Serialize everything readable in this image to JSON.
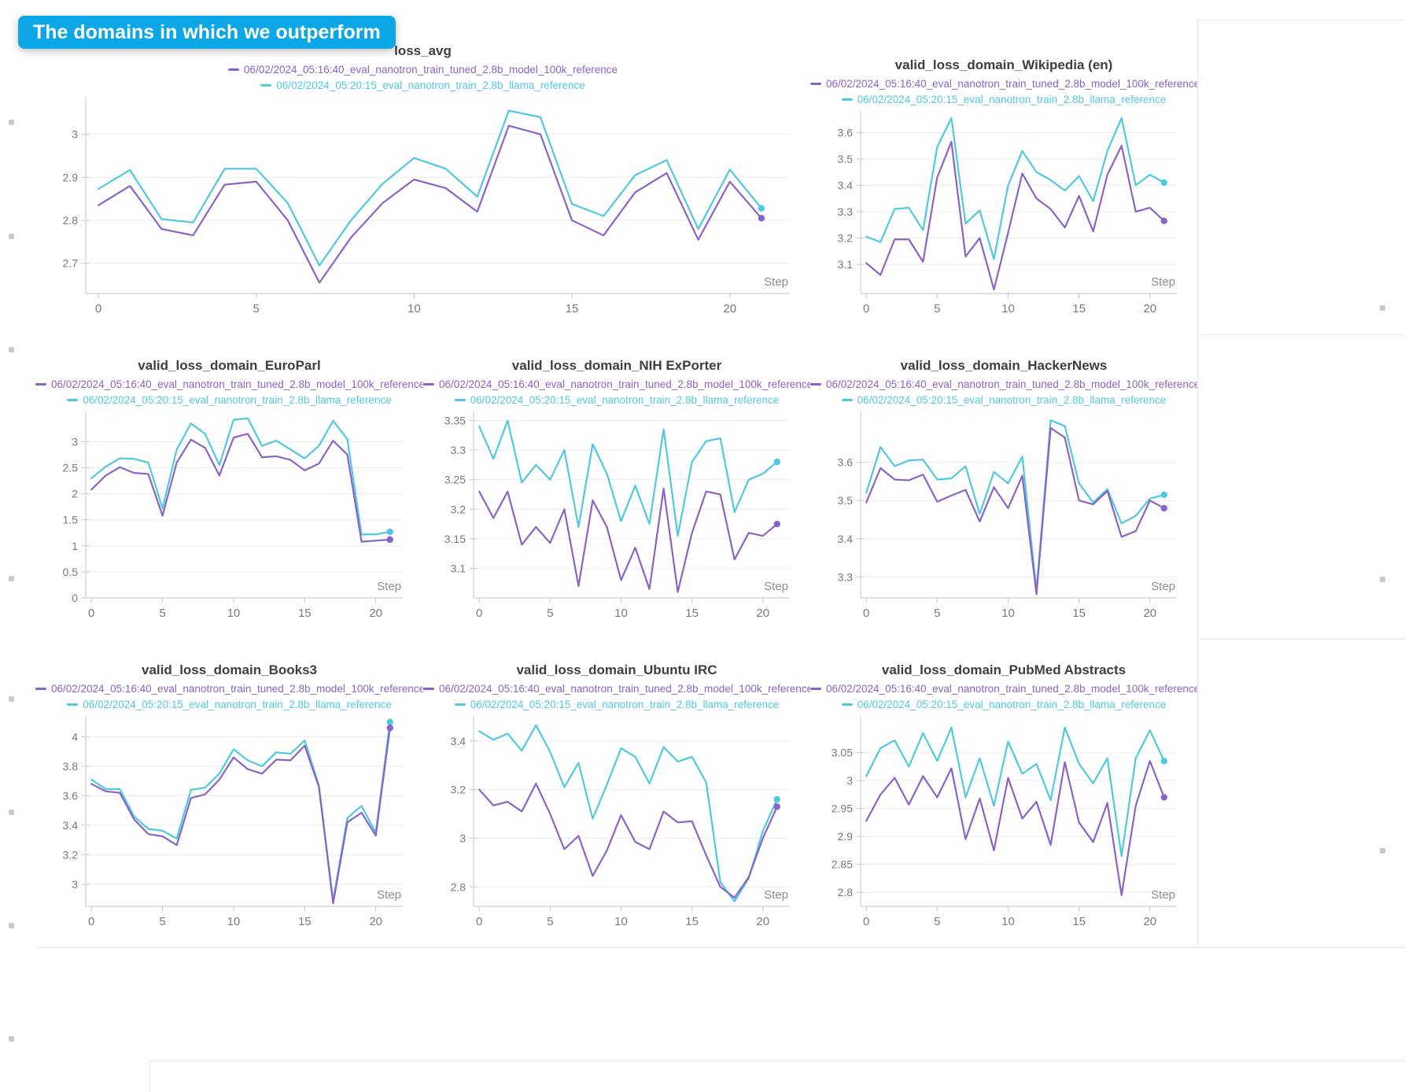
{
  "banner": {
    "text": "The domains in which we outperform",
    "color": "#0ba7e6"
  },
  "runs": [
    {
      "name": "06/02/2024_05:16:40_eval_nanotron_train_tuned_2.8b_model_100k_reference",
      "color": "#8a63c8"
    },
    {
      "name": "06/02/2024_05:20:15_eval_nanotron_train_2.8b_llama_reference",
      "color": "#50c9e0"
    }
  ],
  "axis": {
    "x_label": "Step",
    "x_ticks": [
      0,
      5,
      10,
      15,
      20
    ],
    "xlim": [
      -0.4,
      21.9
    ],
    "grid": true,
    "legend_position": "top-center"
  },
  "chart_data": [
    {
      "type": "line",
      "title": "loss_avg",
      "xlabel": "Step",
      "y_ticks": [
        2.7,
        2.8,
        2.9,
        3
      ],
      "ylim": [
        2.63,
        3.08
      ],
      "x": [
        0,
        1,
        2,
        3,
        4,
        5,
        6,
        7,
        8,
        9,
        10,
        11,
        12,
        13,
        14,
        15,
        16,
        17,
        18,
        19,
        20,
        21
      ],
      "series": [
        {
          "run": 0,
          "values": [
            2.835,
            2.88,
            2.78,
            2.765,
            2.883,
            2.89,
            2.8,
            2.655,
            2.76,
            2.84,
            2.895,
            2.875,
            2.82,
            3.02,
            3.0,
            2.8,
            2.765,
            2.865,
            2.91,
            2.755,
            2.89,
            2.805
          ]
        },
        {
          "run": 1,
          "values": [
            2.873,
            2.917,
            2.803,
            2.795,
            2.92,
            2.92,
            2.84,
            2.695,
            2.8,
            2.885,
            2.945,
            2.92,
            2.855,
            3.055,
            3.04,
            2.838,
            2.81,
            2.905,
            2.94,
            2.78,
            2.918,
            2.828
          ]
        }
      ]
    },
    {
      "type": "line",
      "title": "valid_loss_domain_Wikipedia (en)",
      "xlabel": "Step",
      "y_ticks": [
        3.1,
        3.2,
        3.3,
        3.4,
        3.5,
        3.6
      ],
      "ylim": [
        2.99,
        3.67
      ],
      "x": [
        0,
        1,
        2,
        3,
        4,
        5,
        6,
        7,
        8,
        9,
        10,
        11,
        12,
        13,
        14,
        15,
        16,
        17,
        18,
        19,
        20,
        21
      ],
      "series": [
        {
          "run": 0,
          "values": [
            3.105,
            3.06,
            3.195,
            3.195,
            3.11,
            3.43,
            3.565,
            3.13,
            3.2,
            3.005,
            3.22,
            3.445,
            3.35,
            3.31,
            3.24,
            3.36,
            3.225,
            3.44,
            3.55,
            3.3,
            3.315,
            3.265
          ]
        },
        {
          "run": 1,
          "values": [
            3.205,
            3.185,
            3.31,
            3.315,
            3.23,
            3.545,
            3.655,
            3.255,
            3.305,
            3.12,
            3.4,
            3.53,
            3.45,
            3.42,
            3.38,
            3.435,
            3.34,
            3.53,
            3.655,
            3.4,
            3.44,
            3.41
          ]
        }
      ]
    },
    {
      "type": "line",
      "title": "valid_loss_domain_EuroParl",
      "xlabel": "Step",
      "y_ticks": [
        0,
        0.5,
        1,
        1.5,
        2,
        2.5,
        3
      ],
      "ylim": [
        0,
        3.52
      ],
      "x": [
        0,
        1,
        2,
        3,
        4,
        5,
        6,
        7,
        8,
        9,
        10,
        11,
        12,
        13,
        14,
        15,
        16,
        17,
        18,
        19,
        20,
        21
      ],
      "series": [
        {
          "run": 0,
          "values": [
            2.08,
            2.35,
            2.51,
            2.4,
            2.38,
            1.58,
            2.6,
            3.04,
            2.88,
            2.35,
            3.08,
            3.15,
            2.7,
            2.72,
            2.65,
            2.45,
            2.58,
            3.02,
            2.75,
            1.08,
            1.1,
            1.12
          ]
        },
        {
          "run": 1,
          "values": [
            2.3,
            2.52,
            2.68,
            2.67,
            2.6,
            1.72,
            2.85,
            3.35,
            3.15,
            2.55,
            3.42,
            3.45,
            2.92,
            3.02,
            2.85,
            2.68,
            2.92,
            3.4,
            3.05,
            1.22,
            1.22,
            1.27
          ]
        }
      ]
    },
    {
      "type": "line",
      "title": "valid_loss_domain_NIH ExPorter",
      "xlabel": "Step",
      "y_ticks": [
        3.1,
        3.15,
        3.2,
        3.25,
        3.3,
        3.35
      ],
      "ylim": [
        3.05,
        3.36
      ],
      "x": [
        0,
        1,
        2,
        3,
        4,
        5,
        6,
        7,
        8,
        9,
        10,
        11,
        12,
        13,
        14,
        15,
        16,
        17,
        18,
        19,
        20,
        21
      ],
      "series": [
        {
          "run": 0,
          "values": [
            3.23,
            3.185,
            3.23,
            3.14,
            3.17,
            3.143,
            3.2,
            3.07,
            3.215,
            3.17,
            3.08,
            3.135,
            3.065,
            3.235,
            3.06,
            3.16,
            3.23,
            3.225,
            3.115,
            3.16,
            3.155,
            3.175
          ]
        },
        {
          "run": 1,
          "values": [
            3.34,
            3.285,
            3.35,
            3.245,
            3.275,
            3.25,
            3.3,
            3.17,
            3.31,
            3.26,
            3.18,
            3.24,
            3.175,
            3.335,
            3.155,
            3.28,
            3.315,
            3.32,
            3.195,
            3.25,
            3.26,
            3.28
          ]
        }
      ]
    },
    {
      "type": "line",
      "title": "valid_loss_domain_HackerNews",
      "xlabel": "Step",
      "y_ticks": [
        3.3,
        3.4,
        3.5,
        3.6
      ],
      "ylim": [
        3.245,
        3.725
      ],
      "x": [
        0,
        1,
        2,
        3,
        4,
        5,
        6,
        7,
        8,
        9,
        10,
        11,
        12,
        13,
        14,
        15,
        16,
        17,
        18,
        19,
        20,
        21
      ],
      "series": [
        {
          "run": 0,
          "values": [
            3.495,
            3.585,
            3.555,
            3.553,
            3.568,
            3.497,
            3.513,
            3.528,
            3.445,
            3.535,
            3.48,
            3.565,
            3.255,
            3.69,
            3.665,
            3.5,
            3.49,
            3.525,
            3.405,
            3.42,
            3.5,
            3.48
          ]
        },
        {
          "run": 1,
          "values": [
            3.52,
            3.64,
            3.59,
            3.605,
            3.607,
            3.555,
            3.558,
            3.59,
            3.465,
            3.575,
            3.545,
            3.615,
            3.265,
            3.71,
            3.695,
            3.545,
            3.495,
            3.53,
            3.44,
            3.46,
            3.505,
            3.515
          ]
        }
      ]
    },
    {
      "type": "line",
      "title": "valid_loss_domain_Books3",
      "xlabel": "Step",
      "y_ticks": [
        3,
        3.2,
        3.4,
        3.6,
        3.8,
        4
      ],
      "ylim": [
        2.85,
        4.12
      ],
      "x": [
        0,
        1,
        2,
        3,
        4,
        5,
        6,
        7,
        8,
        9,
        10,
        11,
        12,
        13,
        14,
        15,
        16,
        17,
        18,
        19,
        20,
        21
      ],
      "series": [
        {
          "run": 0,
          "values": [
            3.68,
            3.63,
            3.62,
            3.44,
            3.34,
            3.325,
            3.265,
            3.585,
            3.61,
            3.71,
            3.86,
            3.78,
            3.75,
            3.845,
            3.84,
            3.94,
            3.66,
            2.87,
            3.42,
            3.485,
            3.33,
            4.06
          ]
        },
        {
          "run": 1,
          "values": [
            3.71,
            3.645,
            3.645,
            3.46,
            3.375,
            3.363,
            3.31,
            3.64,
            3.655,
            3.75,
            3.915,
            3.84,
            3.8,
            3.895,
            3.885,
            3.975,
            3.67,
            2.89,
            3.45,
            3.53,
            3.35,
            4.1
          ]
        }
      ]
    },
    {
      "type": "line",
      "title": "valid_loss_domain_Ubuntu IRC",
      "xlabel": "Step",
      "y_ticks": [
        2.8,
        3,
        3.2,
        3.4
      ],
      "ylim": [
        2.72,
        3.49
      ],
      "x": [
        0,
        1,
        2,
        3,
        4,
        5,
        6,
        7,
        8,
        9,
        10,
        11,
        12,
        13,
        14,
        15,
        16,
        17,
        18,
        19,
        20,
        21
      ],
      "series": [
        {
          "run": 0,
          "values": [
            3.2,
            3.135,
            3.15,
            3.11,
            3.225,
            3.1,
            2.955,
            3.01,
            2.845,
            2.95,
            3.095,
            2.985,
            2.955,
            3.11,
            3.065,
            3.07,
            2.93,
            2.8,
            2.755,
            2.84,
            3.0,
            3.13
          ]
        },
        {
          "run": 1,
          "values": [
            3.44,
            3.405,
            3.43,
            3.36,
            3.465,
            3.355,
            3.21,
            3.31,
            3.08,
            3.22,
            3.37,
            3.335,
            3.225,
            3.375,
            3.315,
            3.335,
            3.23,
            2.82,
            2.74,
            2.835,
            3.03,
            3.16
          ]
        }
      ]
    },
    {
      "type": "line",
      "title": "valid_loss_domain_PubMed Abstracts",
      "xlabel": "Step",
      "y_ticks": [
        2.8,
        2.85,
        2.9,
        2.95,
        3,
        3.05
      ],
      "ylim": [
        2.775,
        3.11
      ],
      "x": [
        0,
        1,
        2,
        3,
        4,
        5,
        6,
        7,
        8,
        9,
        10,
        11,
        12,
        13,
        14,
        15,
        16,
        17,
        18,
        19,
        20,
        21
      ],
      "series": [
        {
          "run": 0,
          "values": [
            2.928,
            2.975,
            3.005,
            2.957,
            3.008,
            2.97,
            3.022,
            2.895,
            2.968,
            2.875,
            3.005,
            2.932,
            2.962,
            2.885,
            3.033,
            2.925,
            2.89,
            2.96,
            2.795,
            2.955,
            3.035,
            2.97
          ]
        },
        {
          "run": 1,
          "values": [
            3.008,
            3.058,
            3.072,
            3.025,
            3.085,
            3.035,
            3.095,
            2.97,
            3.04,
            2.955,
            3.07,
            3.012,
            3.03,
            2.965,
            3.095,
            3.03,
            2.995,
            3.04,
            2.865,
            3.04,
            3.09,
            3.035
          ]
        }
      ]
    }
  ]
}
